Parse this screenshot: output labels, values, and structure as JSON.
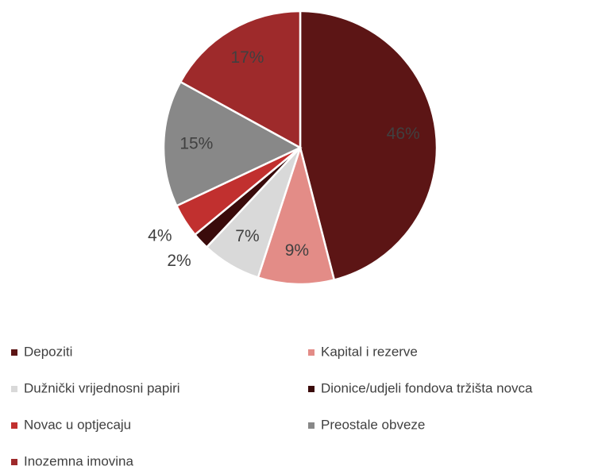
{
  "chart_data": {
    "type": "pie",
    "categories": [
      "Depoziti",
      "Kapital i rezerve",
      "Dužnički vrijednosni papiri",
      "Dionice/udjeli fondova tržišta novca",
      "Novac u optjecaju",
      "Preostale obveze",
      "Inozemna imovina"
    ],
    "values": [
      46,
      9,
      7,
      2,
      4,
      15,
      17
    ],
    "value_labels": [
      "46%",
      "9%",
      "7%",
      "2%",
      "4%",
      "15%",
      "17%"
    ],
    "colors": [
      "#5c1515",
      "#e38c87",
      "#d9d9d9",
      "#3a0b0b",
      "#c1302f",
      "#888888",
      "#9e2a2b"
    ],
    "legend": "bottom"
  }
}
